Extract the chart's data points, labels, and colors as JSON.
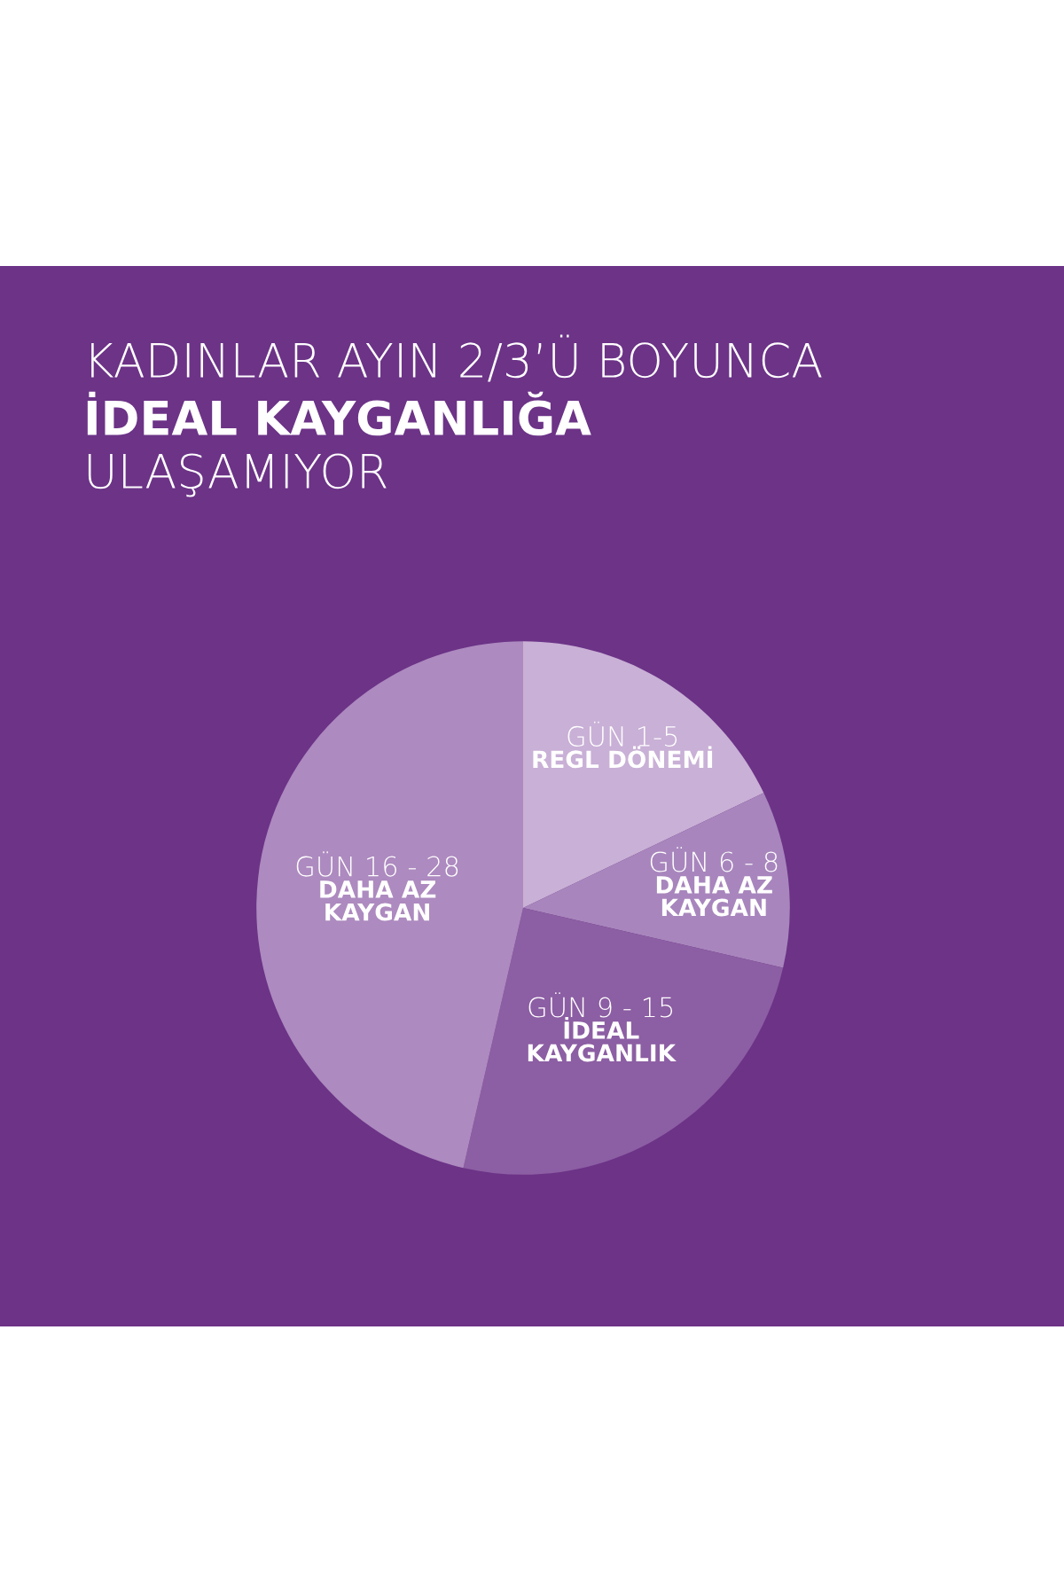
{
  "chart_data": {
    "type": "pie",
    "title": "KADINLAR AYIN 2/3’Ü BOYUNCA\nİDEAL KAYGANLIĞA\nULAŞAMIYOR",
    "categories": [
      "GÜN 1-5\nREGL DÖNEMİ",
      "GÜN 6 - 8\nDAHA AZ\nKAYGAN",
      "GÜN 9 - 15\nİDEAL\nKAYGANLIK",
      "GÜN 16 - 28\nDAHA AZ\nKAYGAN"
    ],
    "values": [
      17.9,
      10.7,
      25.0,
      46.4
    ],
    "colors": [
      "#c9b0d6",
      "#a886bd",
      "#8c5ea3",
      "#ad8abf"
    ],
    "legend": false
  }
}
